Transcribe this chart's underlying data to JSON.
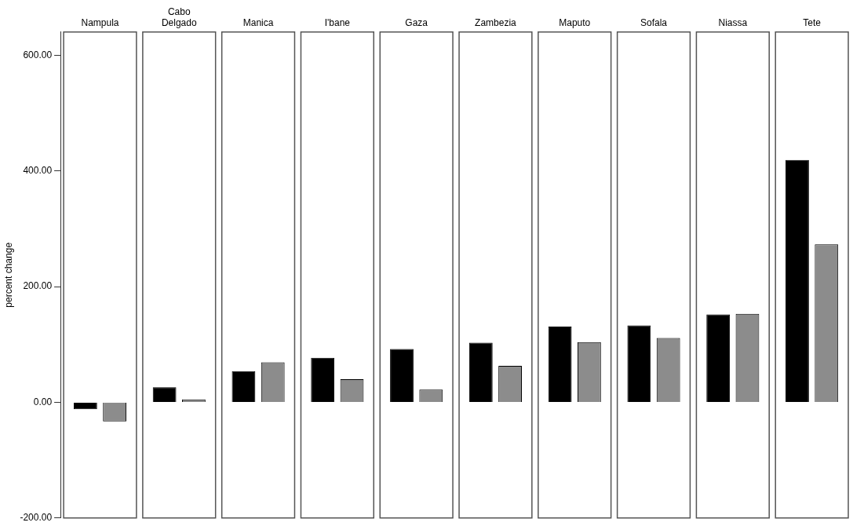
{
  "chart_data": {
    "type": "bar",
    "ylabel": "percent change",
    "categories": [
      "Nampula",
      "Cabo Delgado",
      "Manica",
      "I'bane",
      "Gaza",
      "Zambezia",
      "Maputo",
      "Sofala",
      "Niassa",
      "Tete"
    ],
    "series": [
      {
        "color": "#000000",
        "values": [
          -12,
          26,
          54,
          77,
          92,
          103,
          131,
          133,
          152,
          419
        ]
      },
      {
        "color": "#8c8c8c",
        "values": [
          -33,
          5,
          69,
          40,
          22,
          63,
          104,
          111,
          153,
          273
        ]
      }
    ],
    "ylim": [
      -200,
      640
    ],
    "yticks": [
      {
        "value": -200,
        "label": "-200.00"
      },
      {
        "value": 0,
        "label": "0.00"
      },
      {
        "value": 200,
        "label": "200.00"
      },
      {
        "value": 400,
        "label": "400.00"
      },
      {
        "value": 600,
        "label": "600.00"
      }
    ],
    "grid": false,
    "legend": false
  }
}
